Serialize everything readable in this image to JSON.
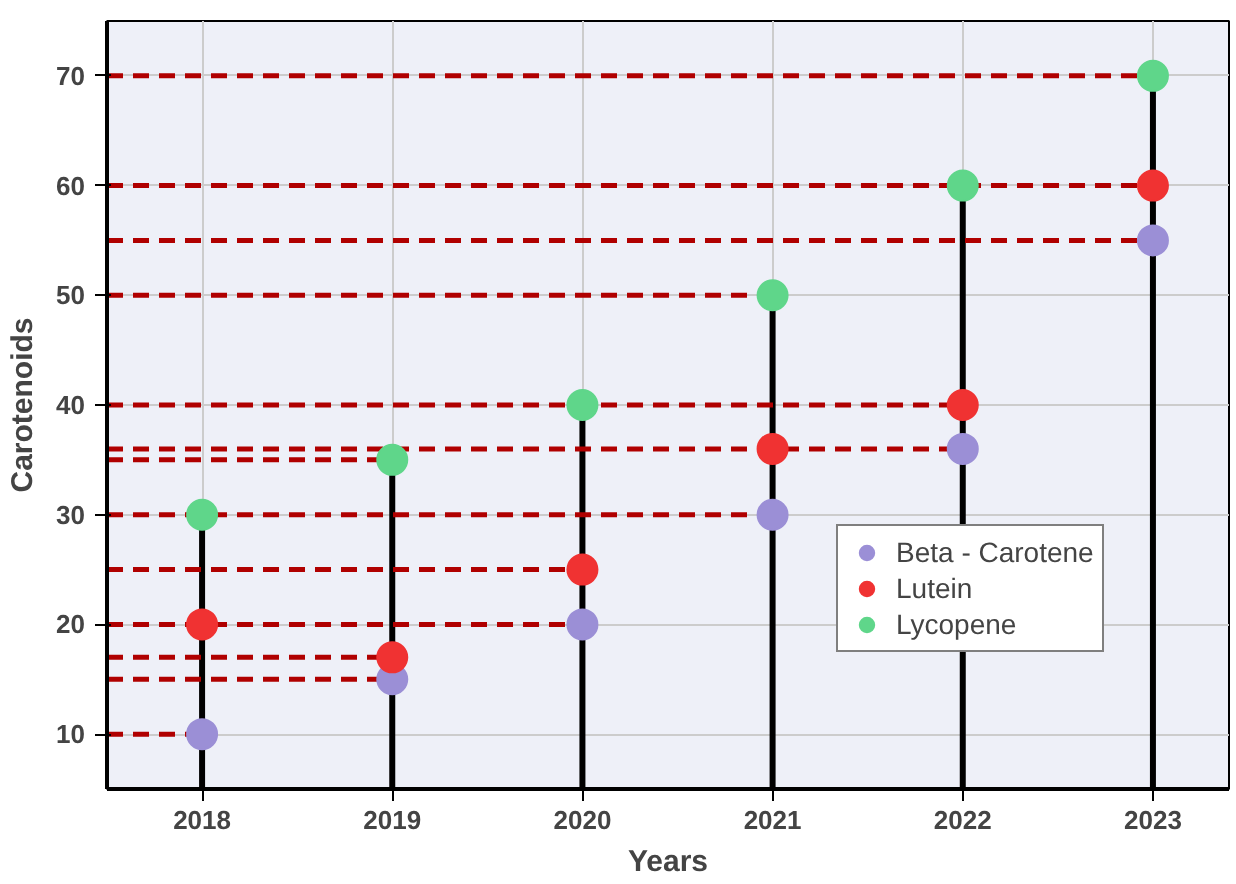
{
  "chart_data": {
    "type": "scatter",
    "xlabel": "Years",
    "ylabel": "Carotenoids",
    "x": [
      2018,
      2019,
      2020,
      2021,
      2022,
      2023
    ],
    "series": [
      {
        "type": "line",
        "marker": "none",
        "color": "#b00000",
        "line_style": "dashed",
        "x": [
          2017.5,
          2018
        ],
        "values": [
          10,
          10
        ]
      },
      {
        "type": "line",
        "marker": "none",
        "color": "#b00000",
        "line_style": "dashed",
        "x": [
          2017.5,
          2019
        ],
        "values": [
          15,
          15
        ]
      },
      {
        "type": "line",
        "marker": "none",
        "color": "#b00000",
        "line_style": "dashed",
        "x": [
          2017.5,
          2019
        ],
        "values": [
          17,
          17
        ]
      },
      {
        "type": "line",
        "marker": "none",
        "color": "#b00000",
        "line_style": "dashed",
        "x": [
          2017.5,
          2020
        ],
        "values": [
          20,
          20
        ]
      },
      {
        "type": "line",
        "marker": "none",
        "color": "#b00000",
        "line_style": "dashed",
        "x": [
          2017.5,
          2020
        ],
        "values": [
          25,
          25
        ]
      },
      {
        "type": "line",
        "marker": "none",
        "color": "#b00000",
        "line_style": "dashed",
        "x": [
          2017.5,
          2021
        ],
        "values": [
          30,
          30
        ]
      },
      {
        "type": "line",
        "marker": "none",
        "color": "#b00000",
        "line_style": "dashed",
        "x": [
          2017.5,
          2019
        ],
        "values": [
          35,
          35
        ]
      },
      {
        "type": "line",
        "marker": "none",
        "color": "#b00000",
        "line_style": "dashed",
        "x": [
          2017.5,
          2022
        ],
        "values": [
          36,
          36
        ]
      },
      {
        "type": "line",
        "marker": "none",
        "color": "#b00000",
        "line_style": "dashed",
        "x": [
          2017.5,
          2022
        ],
        "values": [
          40,
          40
        ]
      },
      {
        "type": "line",
        "marker": "none",
        "color": "#b00000",
        "line_style": "dashed",
        "x": [
          2017.5,
          2021
        ],
        "values": [
          50,
          50
        ]
      },
      {
        "type": "line",
        "marker": "none",
        "color": "#b00000",
        "line_style": "dashed",
        "x": [
          2017.5,
          2023
        ],
        "values": [
          55,
          55
        ]
      },
      {
        "type": "line",
        "marker": "none",
        "color": "#b00000",
        "line_style": "dashed",
        "x": [
          2017.5,
          2023
        ],
        "values": [
          60,
          60
        ]
      },
      {
        "type": "line",
        "marker": "none",
        "color": "#b00000",
        "line_style": "dashed",
        "x": [
          2017.5,
          2023
        ],
        "values": [
          70,
          70
        ]
      },
      {
        "name": "Beta - Carotene",
        "color": "#9b8fd6",
        "values": [
          10,
          15,
          20,
          30,
          36,
          55
        ]
      },
      {
        "name": "Lutein",
        "color": "#f03232",
        "values": [
          20,
          17,
          25,
          36,
          40,
          60
        ]
      },
      {
        "name": "Lycopene",
        "color": "#5fd68a",
        "type": "lollipop",
        "values": [
          30,
          35,
          40,
          50,
          60,
          70
        ]
      }
    ],
    "xlim": [
      2017.5,
      2023.4
    ],
    "ylim": [
      5,
      75
    ],
    "xticks": [
      2018,
      2019,
      2020,
      2021,
      2022,
      2023
    ],
    "yticks": [
      10,
      20,
      30,
      40,
      50,
      60,
      70
    ],
    "grid": true,
    "legend": "right",
    "marker": "circle"
  }
}
